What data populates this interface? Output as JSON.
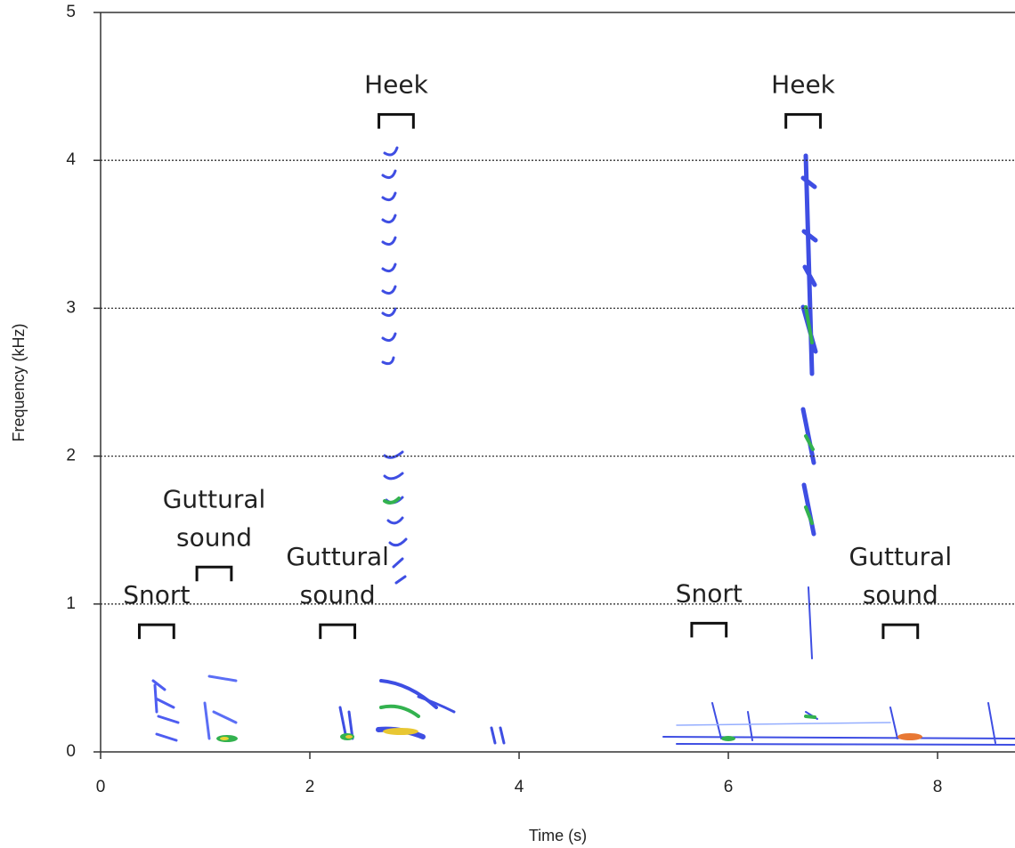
{
  "chart_data": {
    "type": "spectrogram",
    "x_label": "Time (s)",
    "y_label": "Frequency (kHz)",
    "xlim": [
      0,
      8.74
    ],
    "ylim": [
      0,
      5
    ],
    "xticks": [
      0,
      2,
      4,
      6,
      8
    ],
    "yticks": [
      0,
      1,
      2,
      3,
      4,
      5
    ],
    "grid": true,
    "grid_color": "#333333",
    "annotations": [
      {
        "lines": [
          "Snort"
        ],
        "x": [
          0.37,
          0.7
        ],
        "y": 0.86
      },
      {
        "lines": [
          "Guttural",
          "sound"
        ],
        "x": [
          0.92,
          1.25
        ],
        "y": 1.25
      },
      {
        "lines": [
          "Guttural",
          "sound"
        ],
        "x": [
          2.1,
          2.43
        ],
        "y": 0.86
      },
      {
        "lines": [
          "Heek"
        ],
        "x": [
          2.66,
          2.99
        ],
        "y": 4.31
      },
      {
        "lines": [
          "Snort"
        ],
        "x": [
          5.65,
          5.98
        ],
        "y": 0.87
      },
      {
        "lines": [
          "Heek"
        ],
        "x": [
          6.55,
          6.88
        ],
        "y": 4.31
      },
      {
        "lines": [
          "Guttural",
          "sound"
        ],
        "x": [
          7.48,
          7.81
        ],
        "y": 0.86
      }
    ]
  }
}
